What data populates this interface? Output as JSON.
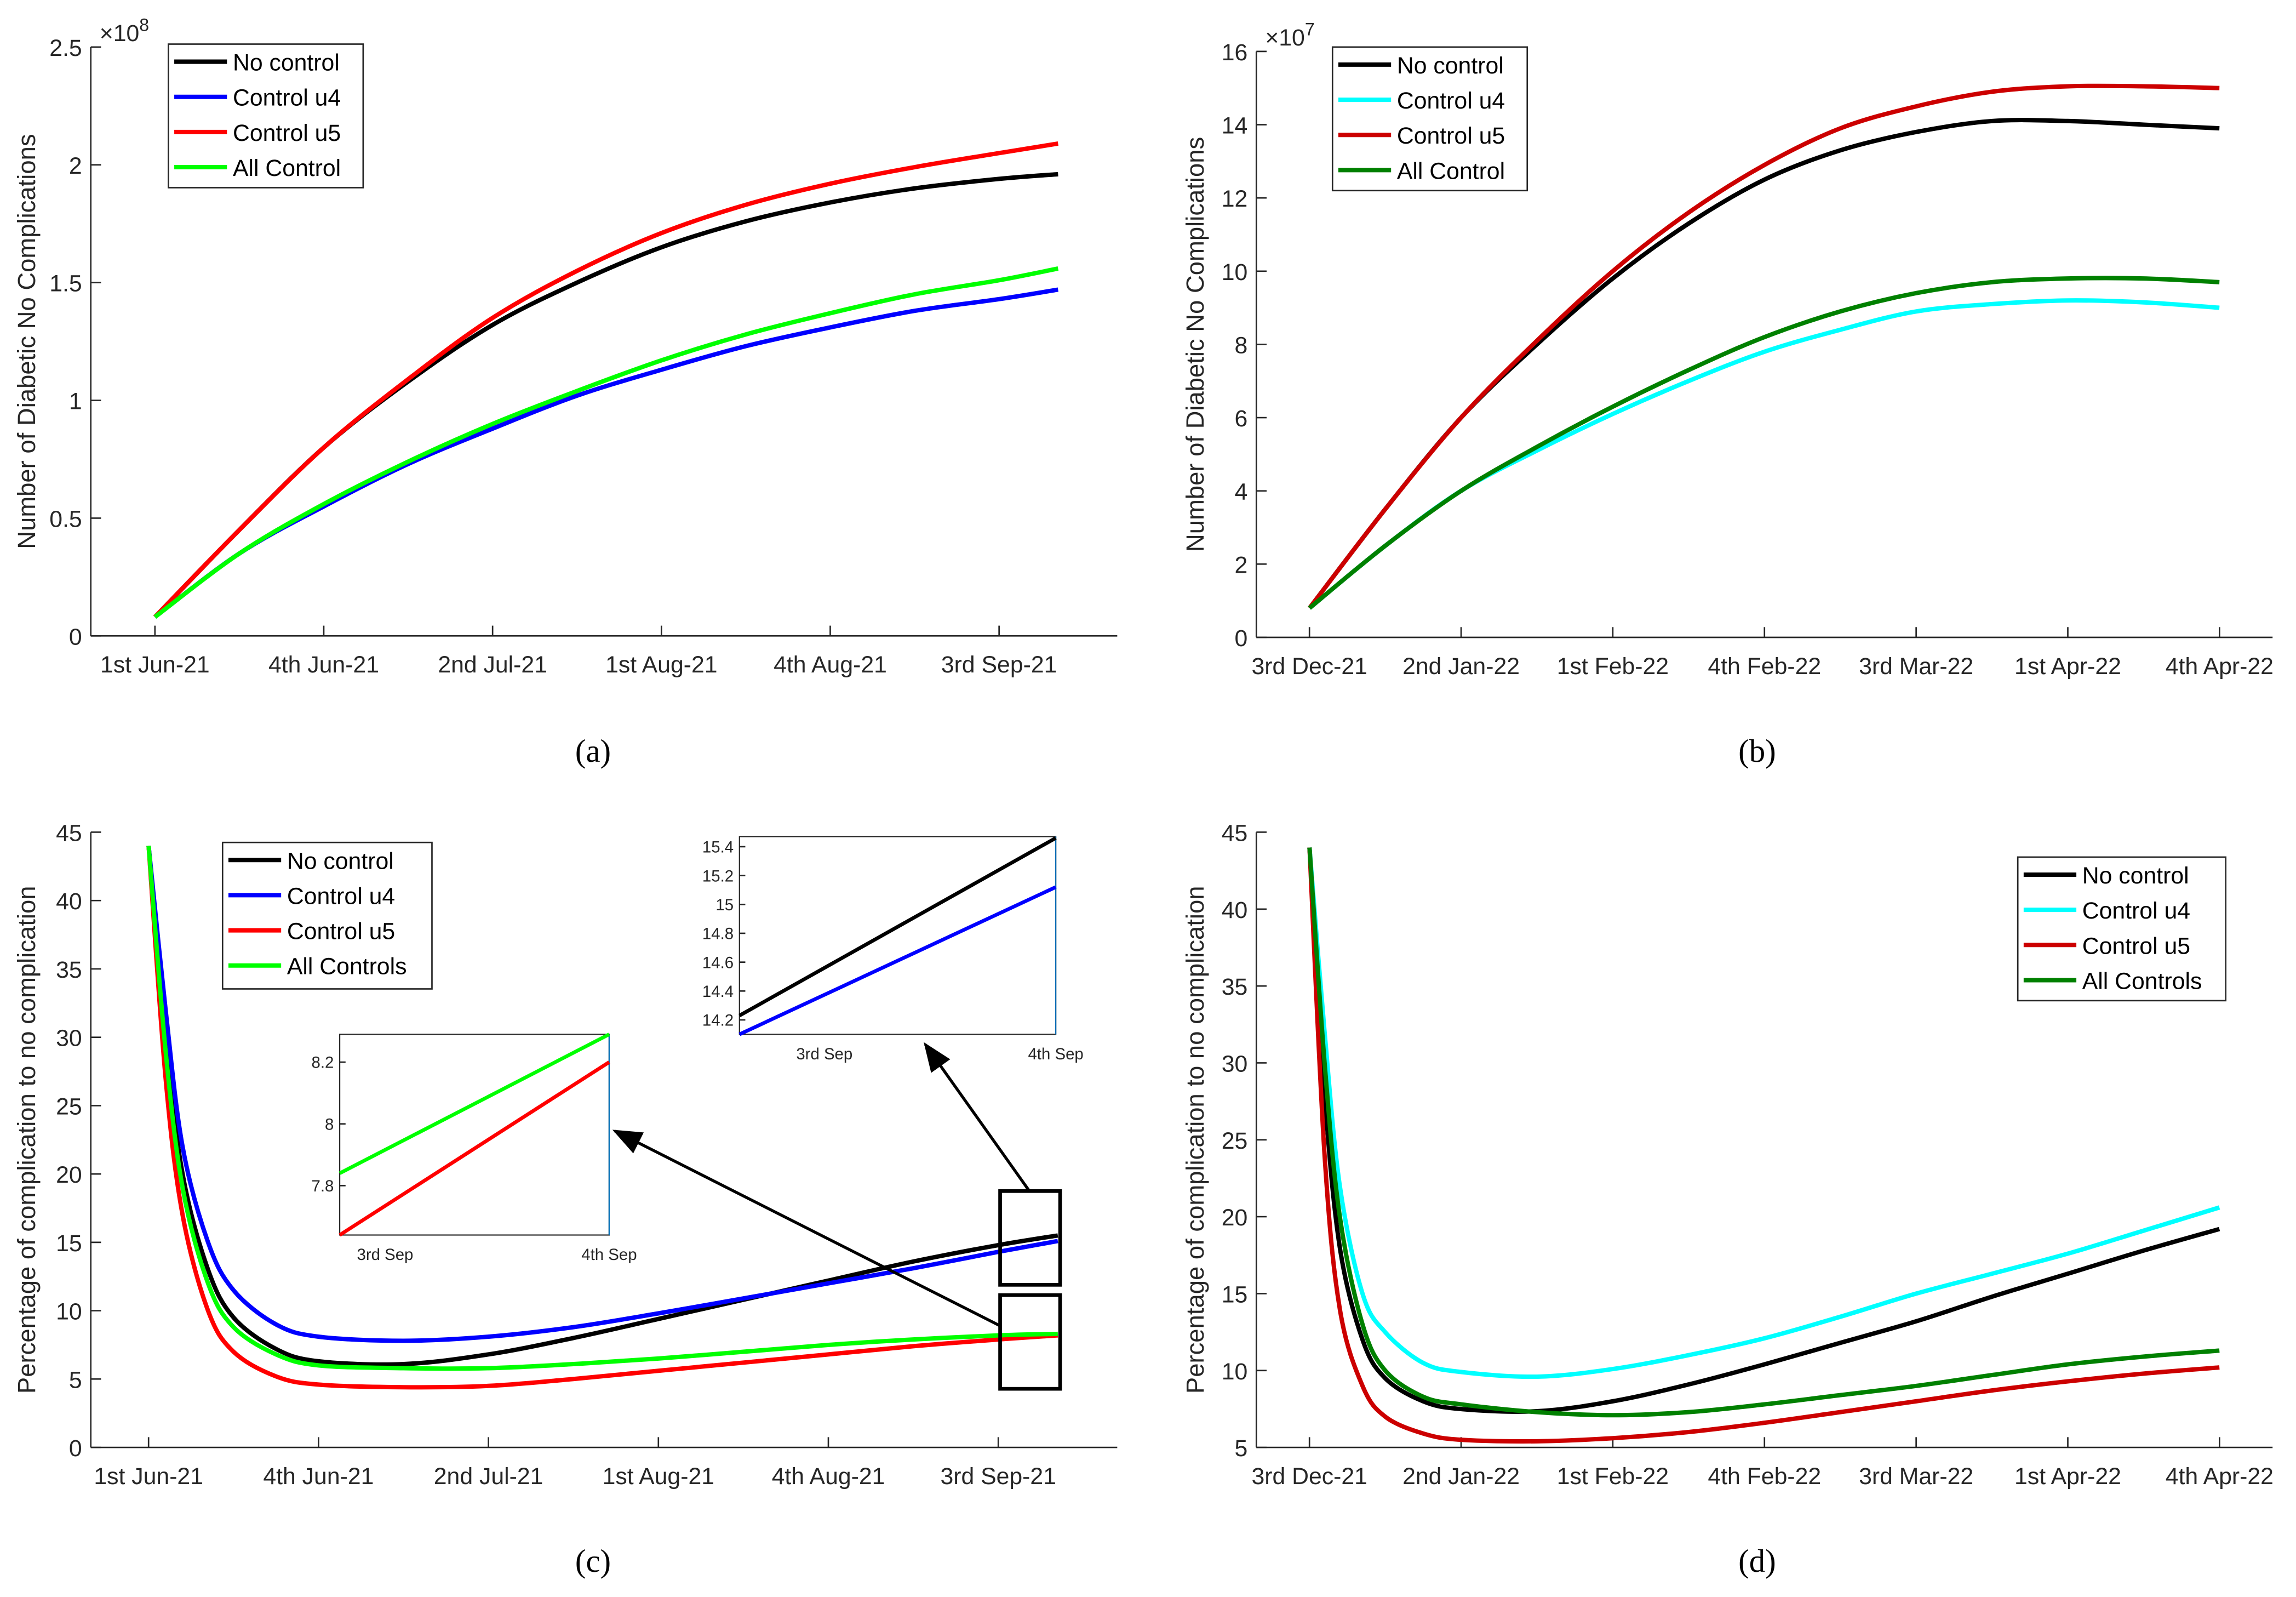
{
  "chart_data": [
    {
      "id": "a",
      "type": "line",
      "caption": "(a)",
      "ylabel": "Number of Diabetic No Complications",
      "exponent": "×10",
      "exponent_power": "8",
      "ylim": [
        0,
        2.5
      ],
      "yticks": [
        "0",
        "0.5",
        "1",
        "1.5",
        "2",
        "2.5"
      ],
      "ytick_values": [
        0,
        0.5,
        1,
        1.5,
        2,
        2.5
      ],
      "xlim": [
        -0.38,
        5.7
      ],
      "xticks": [
        "1st Jun-21",
        "4th Jun-21",
        "2nd Jul-21",
        "1st Aug-21",
        "4th Aug-21",
        "3rd Sep-21"
      ],
      "xtick_values": [
        0,
        1,
        2,
        3,
        4,
        5
      ],
      "x": [
        0,
        0.5,
        1,
        1.5,
        2,
        2.5,
        3,
        3.5,
        4,
        4.5,
        5,
        5.35
      ],
      "series": [
        {
          "name": "No control",
          "color": "#000000",
          "values": [
            0.08,
            0.45,
            0.8,
            1.08,
            1.32,
            1.5,
            1.65,
            1.76,
            1.84,
            1.9,
            1.94,
            1.96
          ]
        },
        {
          "name": "Control u4",
          "color": "#0000ff",
          "values": [
            0.08,
            0.35,
            0.55,
            0.73,
            0.88,
            1.02,
            1.13,
            1.23,
            1.31,
            1.38,
            1.43,
            1.47
          ]
        },
        {
          "name": "Control u5",
          "color": "#ff0000",
          "values": [
            0.08,
            0.45,
            0.8,
            1.09,
            1.35,
            1.55,
            1.71,
            1.83,
            1.92,
            1.99,
            2.05,
            2.09
          ]
        },
        {
          "name": "All Control",
          "color": "#00ff00",
          "values": [
            0.08,
            0.35,
            0.56,
            0.74,
            0.9,
            1.04,
            1.17,
            1.28,
            1.37,
            1.45,
            1.51,
            1.56
          ]
        }
      ]
    },
    {
      "id": "b",
      "type": "line",
      "caption": "(b)",
      "ylabel": "Number of Diabetic No Complications",
      "exponent": "×10",
      "exponent_power": "7",
      "ylim": [
        0,
        16
      ],
      "yticks": [
        "0",
        "2",
        "4",
        "6",
        "8",
        "10",
        "12",
        "14",
        "16"
      ],
      "ytick_values": [
        0,
        2,
        4,
        6,
        8,
        10,
        12,
        14,
        16
      ],
      "xlim": [
        -0.35,
        6.35
      ],
      "xticks": [
        "3rd Dec-21",
        "2nd Jan-22",
        "1st Feb-22",
        "4th Feb-22",
        "3rd Mar-22",
        "1st Apr-22",
        "4th Apr-22"
      ],
      "xtick_values": [
        0,
        1,
        2,
        3,
        4,
        5,
        6
      ],
      "x": [
        0,
        0.5,
        1,
        1.5,
        2,
        2.5,
        3,
        3.5,
        4,
        4.5,
        5,
        5.5,
        6
      ],
      "series": [
        {
          "name": "No control",
          "color": "#000000",
          "values": [
            0.8,
            3.5,
            6,
            8,
            9.8,
            11.3,
            12.5,
            13.3,
            13.8,
            14.1,
            14.1,
            14.0,
            13.9
          ]
        },
        {
          "name": "Control u4",
          "color": "#00ffff",
          "values": [
            0.8,
            2.5,
            4,
            5.1,
            6.1,
            7,
            7.8,
            8.4,
            8.9,
            9.1,
            9.2,
            9.15,
            9.0
          ]
        },
        {
          "name": "Control u5",
          "color": "#cc0000",
          "values": [
            0.8,
            3.5,
            6,
            8.1,
            10,
            11.6,
            12.9,
            13.9,
            14.5,
            14.9,
            15.05,
            15.05,
            15.0
          ]
        },
        {
          "name": "All Control",
          "color": "#008000",
          "values": [
            0.8,
            2.5,
            4,
            5.2,
            6.3,
            7.3,
            8.2,
            8.9,
            9.4,
            9.7,
            9.8,
            9.8,
            9.7
          ]
        }
      ]
    },
    {
      "id": "c",
      "type": "line",
      "caption": "(c)",
      "ylabel": "Percentage of complication to no complication",
      "ylim": [
        0,
        45
      ],
      "yticks": [
        "0",
        "5",
        "10",
        "15",
        "20",
        "25",
        "30",
        "35",
        "40",
        "45"
      ],
      "ytick_values": [
        0,
        5,
        10,
        15,
        20,
        25,
        30,
        35,
        40,
        45
      ],
      "xlim": [
        -0.34,
        5.7
      ],
      "xticks": [
        "1st Jun-21",
        "4th Jun-21",
        "2nd Jul-21",
        "1st Aug-21",
        "4th Aug-21",
        "3rd Sep-21"
      ],
      "xtick_values": [
        0,
        1,
        2,
        3,
        4,
        5
      ],
      "x": [
        0,
        0.1,
        0.2,
        0.35,
        0.5,
        0.75,
        1,
        1.5,
        2,
        2.5,
        3,
        3.5,
        4,
        4.5,
        5,
        5.35
      ],
      "series": [
        {
          "name": "No control",
          "color": "#000000",
          "values": [
            44,
            30,
            20,
            13,
            9.5,
            7.2,
            6.3,
            6.1,
            6.8,
            8,
            9.4,
            10.8,
            12.2,
            13.6,
            14.8,
            15.5
          ]
        },
        {
          "name": "Control u4",
          "color": "#0000ff",
          "values": [
            44,
            32,
            22,
            15,
            11.5,
            9,
            8.1,
            7.8,
            8.1,
            8.8,
            9.8,
            10.9,
            12,
            13.1,
            14.3,
            15.1
          ]
        },
        {
          "name": "Control u5",
          "color": "#ff0000",
          "values": [
            44,
            27,
            17,
            10,
            7,
            5.2,
            4.6,
            4.4,
            4.5,
            5,
            5.6,
            6.2,
            6.8,
            7.4,
            7.9,
            8.2
          ]
        },
        {
          "name": "All Controls",
          "color": "#00ff00",
          "values": [
            44,
            29,
            19,
            12,
            8.8,
            6.8,
            6,
            5.8,
            5.8,
            6.1,
            6.5,
            7,
            7.5,
            7.9,
            8.2,
            8.3
          ]
        }
      ],
      "insets": [
        {
          "ylim": [
            7.64,
            8.29
          ],
          "yticks": [
            "7.8",
            "8",
            "8.2"
          ],
          "ytick_values": [
            7.8,
            8,
            8.2
          ],
          "xticks": [
            "3rd Sep",
            "4th Sep"
          ],
          "lines": [
            {
              "color": "#00ff00",
              "values": [
                7.84,
                8.29
              ]
            },
            {
              "color": "#ff0000",
              "values": [
                7.64,
                8.2
              ]
            }
          ]
        },
        {
          "ylim": [
            14.1,
            15.47
          ],
          "yticks": [
            "14.2",
            "14.4",
            "14.6",
            "14.8",
            "15",
            "15.2",
            "15.4"
          ],
          "ytick_values": [
            14.2,
            14.4,
            14.6,
            14.8,
            15,
            15.2,
            15.4
          ],
          "xticks": [
            "3rd Sep",
            "4th Sep"
          ],
          "lines": [
            {
              "color": "#000000",
              "values": [
                14.23,
                15.46
              ]
            },
            {
              "color": "#0000ff",
              "values": [
                14.1,
                15.12
              ]
            }
          ]
        }
      ]
    },
    {
      "id": "d",
      "type": "line",
      "caption": "(d)",
      "ylabel": "Percentage of complication to no complication",
      "ylim": [
        5,
        45
      ],
      "yticks": [
        "5",
        "10",
        "15",
        "20",
        "25",
        "30",
        "35",
        "40",
        "45"
      ],
      "ytick_values": [
        5,
        10,
        15,
        20,
        25,
        30,
        35,
        40,
        45
      ],
      "xlim": [
        -0.35,
        6.35
      ],
      "xticks": [
        "3rd Dec-21",
        "2nd Jan-22",
        "1st Feb-22",
        "4th Feb-22",
        "3rd Mar-22",
        "1st Apr-22",
        "4th Apr-22"
      ],
      "xtick_values": [
        0,
        1,
        2,
        3,
        4,
        5,
        6
      ],
      "x": [
        0,
        0.1,
        0.2,
        0.35,
        0.5,
        0.75,
        1,
        1.5,
        2,
        2.5,
        3,
        3.5,
        4,
        4.5,
        5,
        5.5,
        6
      ],
      "series": [
        {
          "name": "No control",
          "color": "#000000",
          "values": [
            44,
            28,
            18,
            12,
            9.5,
            8,
            7.5,
            7.35,
            8,
            9.1,
            10.4,
            11.8,
            13.2,
            14.8,
            16.3,
            17.8,
            19.2
          ]
        },
        {
          "name": "Control u4",
          "color": "#00ffff",
          "values": [
            44,
            32,
            22,
            15,
            12.5,
            10.5,
            9.9,
            9.6,
            10.1,
            11,
            12.1,
            13.5,
            15,
            16.3,
            17.6,
            19.1,
            20.6
          ]
        },
        {
          "name": "Control u5",
          "color": "#cc0000",
          "values": [
            44,
            24,
            14,
            9,
            7,
            5.9,
            5.5,
            5.4,
            5.6,
            6,
            6.6,
            7.3,
            8,
            8.7,
            9.3,
            9.8,
            10.2
          ]
        },
        {
          "name": "All Controls",
          "color": "#008000",
          "values": [
            44,
            30,
            20,
            13,
            10,
            8.3,
            7.8,
            7.3,
            7.1,
            7.3,
            7.8,
            8.4,
            9,
            9.7,
            10.4,
            10.9,
            11.3
          ]
        }
      ]
    }
  ]
}
